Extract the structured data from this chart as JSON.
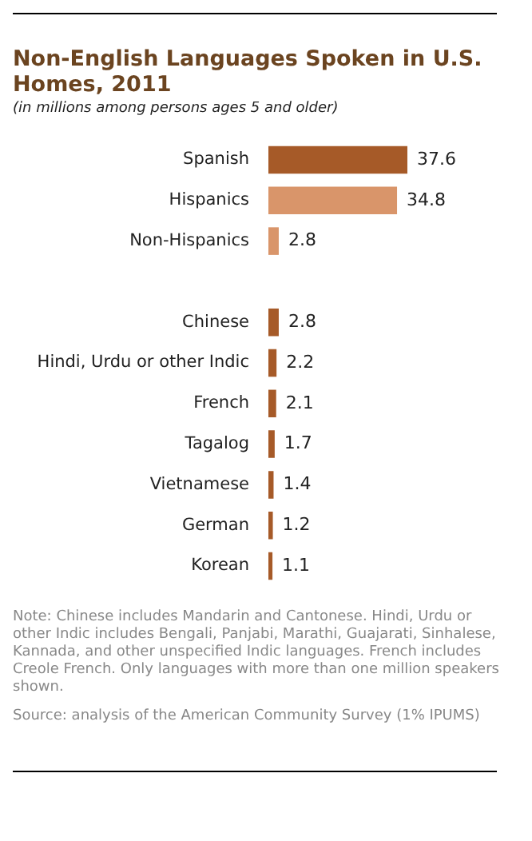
{
  "chart_data": {
    "type": "bar",
    "orientation": "horizontal",
    "title": "Non-English Languages Spoken in U.S. Homes, 2011",
    "subtitle": "(in millions among persons ages 5 and older)",
    "categories": [
      "Spanish",
      "Hispanics",
      "Non-Hispanics",
      null,
      "Chinese",
      "Hindi, Urdu or other Indic",
      "French",
      "Tagalog",
      "Vietnamese",
      "German",
      "Korean"
    ],
    "values": [
      37.6,
      34.8,
      2.8,
      null,
      2.8,
      2.2,
      2.1,
      1.7,
      1.4,
      1.2,
      1.1
    ],
    "colors": [
      "#a65a28",
      "#d9956a",
      "#d9956a",
      "#a65a28",
      "#a65a28",
      "#a65a28",
      "#a65a28",
      "#a65a28",
      "#a65a28",
      "#a65a28",
      "#a65a28"
    ],
    "data_labels": true,
    "legend": false,
    "grid": false,
    "annotations": [
      "Note: Chinese includes Mandarin and Cantonese. Hindi, Urdu or other Indic includes Bengali, Panjabi, Marathi, Guajarati, Sinhalese, Kannada, and other unspecified Indic languages. French includes Creole French. Only languages with more than one million speakers shown.",
      "Source: analysis of the American Community Survey (1% IPUMS)"
    ]
  }
}
